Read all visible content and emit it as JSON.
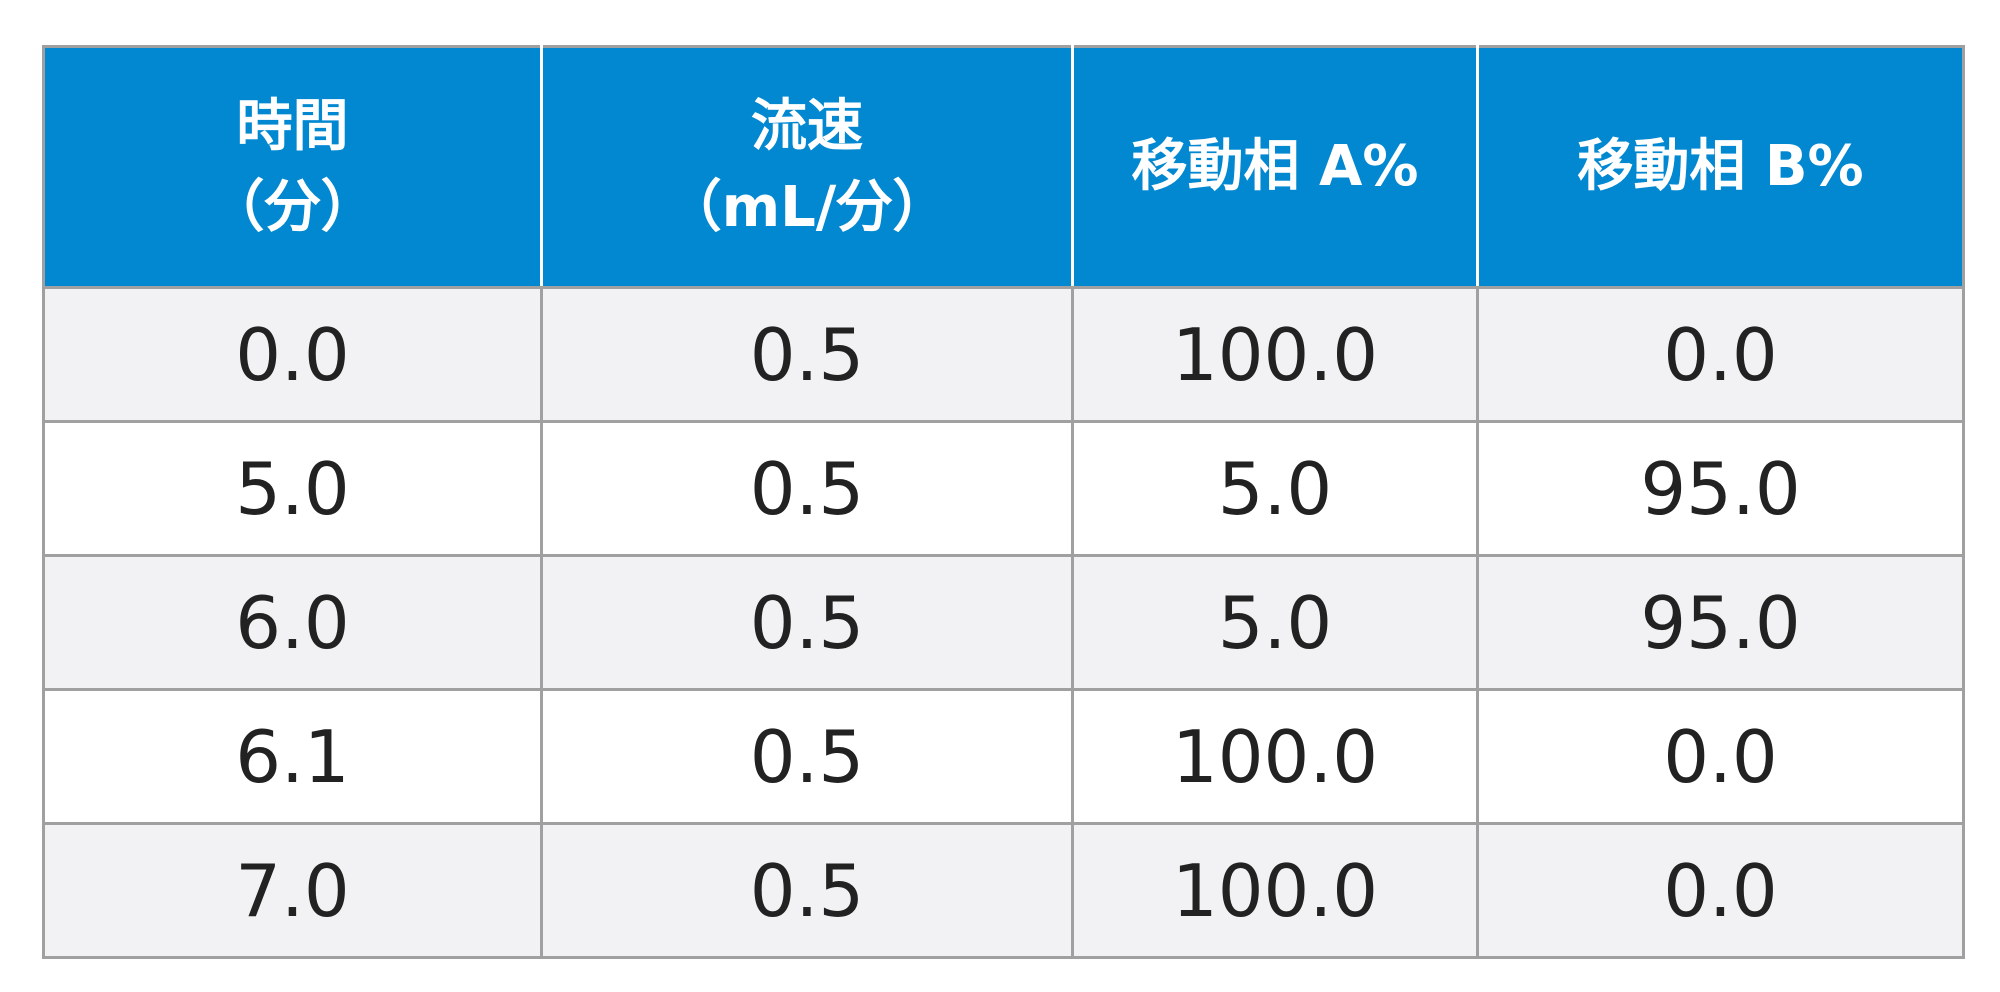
{
  "table": {
    "header": [
      [
        "時間",
        "（分）"
      ],
      [
        "流速",
        "（mL/分）"
      ],
      [
        "移動相 A%"
      ],
      [
        "移動相 B%"
      ]
    ],
    "rows": [
      [
        "0.0",
        "0.5",
        "100.0",
        "0.0"
      ],
      [
        "5.0",
        "0.5",
        "5.0",
        "95.0"
      ],
      [
        "6.0",
        "0.5",
        "5.0",
        "95.0"
      ],
      [
        "6.1",
        "0.5",
        "100.0",
        "0.0"
      ],
      [
        "7.0",
        "0.5",
        "100.0",
        "0.0"
      ]
    ]
  }
}
